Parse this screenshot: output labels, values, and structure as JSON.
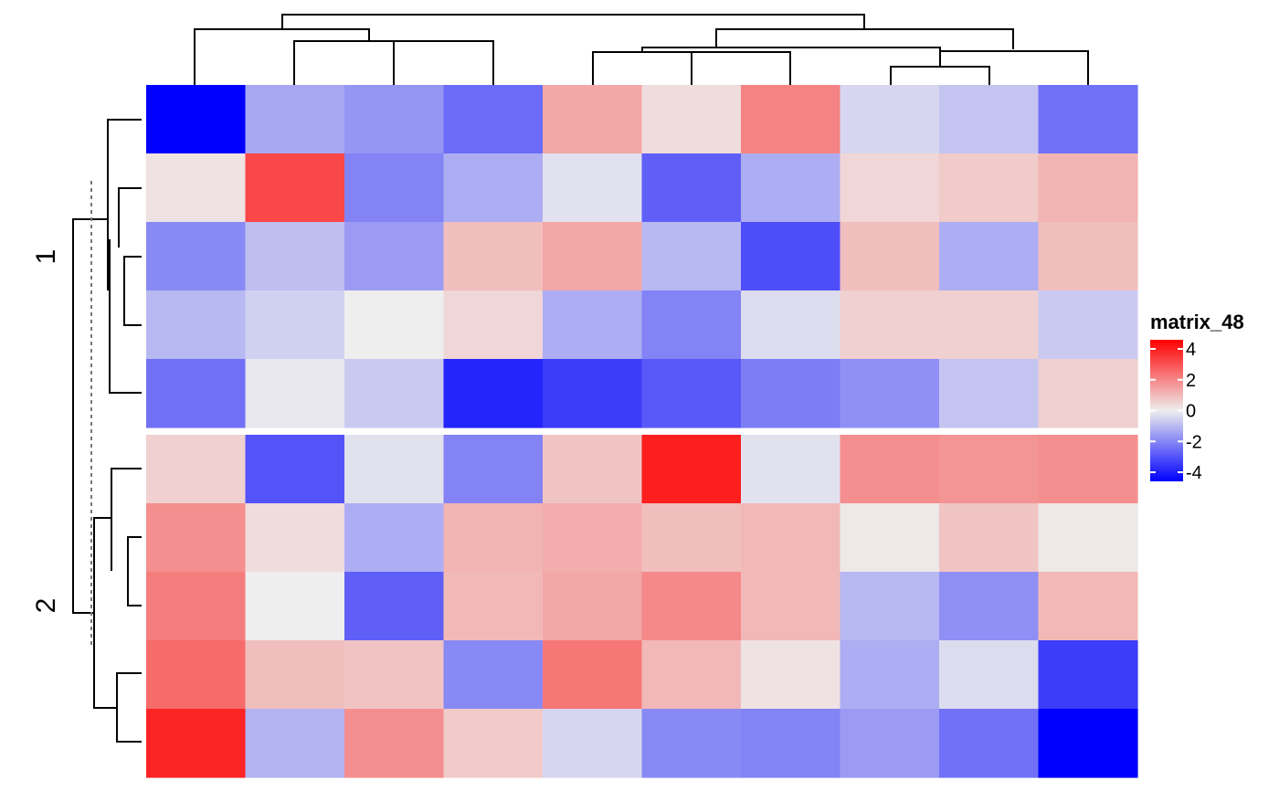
{
  "chart_data": {
    "type": "heatmap",
    "legend": {
      "title": "matrix_48",
      "ticks": [
        4,
        2,
        0,
        -2,
        -4
      ],
      "tick_labels": [
        "4",
        "2",
        "0",
        "-2",
        "-4"
      ],
      "placement": "right",
      "color_low": "#0000FF",
      "color_mid": "#EEEEEE",
      "color_high": "#FF0000",
      "range": [
        -4,
        4
      ]
    },
    "row_split_labels": [
      "1",
      "2"
    ],
    "row_groups": [
      5,
      5
    ],
    "values": [
      [
        -4.0,
        -1.2,
        -1.5,
        -2.2,
        1.2,
        0.3,
        1.8,
        -0.4,
        -0.7,
        -2.1
      ],
      [
        0.2,
        2.8,
        -1.8,
        -1.1,
        -0.2,
        -2.4,
        -1.1,
        0.4,
        0.6,
        1.0
      ],
      [
        -1.7,
        -0.8,
        -1.4,
        0.8,
        1.2,
        -0.9,
        -2.7,
        0.8,
        -1.1,
        0.8
      ],
      [
        -0.9,
        -0.5,
        0.0,
        0.4,
        -1.1,
        -1.8,
        -0.3,
        0.5,
        0.5,
        -0.6
      ],
      [
        -2.1,
        -0.1,
        -0.6,
        -3.4,
        -3.0,
        -2.5,
        -1.9,
        -1.6,
        -0.7,
        0.5
      ],
      [
        0.5,
        -2.6,
        -0.2,
        -1.8,
        0.7,
        3.5,
        -0.2,
        1.6,
        1.5,
        1.6
      ],
      [
        1.6,
        0.3,
        -1.1,
        1.0,
        1.1,
        0.8,
        0.9,
        0.1,
        0.7,
        0.1
      ],
      [
        1.9,
        0.0,
        -2.4,
        0.9,
        1.2,
        1.7,
        0.9,
        -0.9,
        -1.6,
        0.9
      ],
      [
        2.2,
        0.8,
        0.7,
        -1.7,
        2.0,
        0.9,
        0.2,
        -1.1,
        -0.3,
        -3.0
      ],
      [
        3.4,
        -1.0,
        1.6,
        0.6,
        -0.4,
        -1.7,
        -1.8,
        -1.4,
        -2.1,
        -4.0
      ]
    ]
  }
}
